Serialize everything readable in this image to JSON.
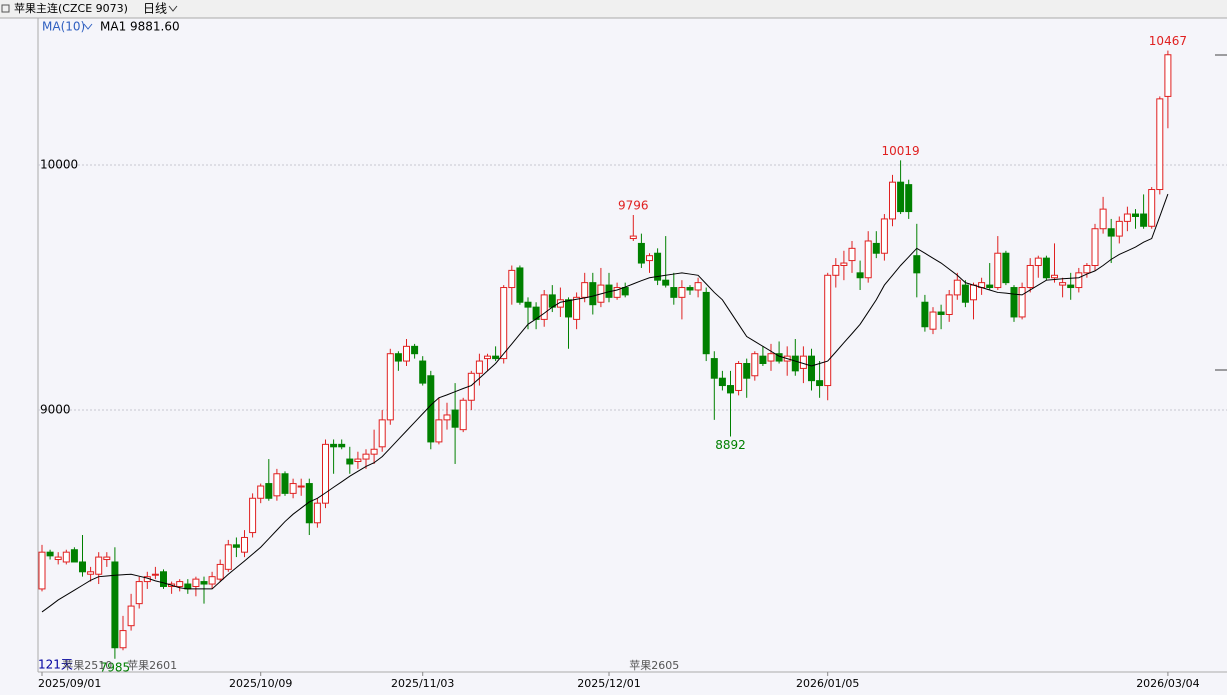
{
  "chart_data": {
    "type": "candlestick",
    "title": "苹果主连(CZCE 9073)",
    "period": "日线",
    "indicator": "MA(10)",
    "ma_legend": "MA1 9881.60",
    "up_color": "#e02020",
    "down_color": "#008000",
    "ma_color": "#000000",
    "ylim": [
      7931,
      10600
    ],
    "yticks": [
      9000,
      10000
    ],
    "grid": true,
    "categories": [
      "2025/09/01",
      null,
      null,
      null,
      null,
      null,
      null,
      null,
      null,
      null,
      null,
      null,
      null,
      null,
      null,
      null,
      null,
      null,
      null,
      null,
      null,
      null,
      null,
      null,
      null,
      null,
      null,
      "2025/10/09",
      null,
      null,
      null,
      null,
      null,
      null,
      null,
      null,
      null,
      null,
      null,
      null,
      null,
      null,
      null,
      null,
      null,
      null,
      null,
      "2025/11/03",
      null,
      null,
      null,
      null,
      null,
      null,
      null,
      null,
      null,
      null,
      null,
      null,
      null,
      null,
      null,
      null,
      null,
      null,
      null,
      null,
      null,
      null,
      "2025/12/01",
      null,
      null,
      null,
      null,
      null,
      null,
      null,
      null,
      null,
      null,
      null,
      null,
      null,
      null,
      null,
      null,
      null,
      null,
      null,
      null,
      null,
      null,
      null,
      null,
      null,
      null,
      "2026/01/05",
      null,
      null,
      null,
      null,
      null,
      null,
      null,
      null,
      null,
      null,
      null,
      null,
      null,
      null,
      null,
      null,
      null,
      null,
      null,
      null,
      null,
      null,
      null,
      null,
      null,
      null,
      null,
      null,
      null,
      null,
      null,
      null,
      null,
      null,
      null,
      null,
      null,
      null,
      null,
      null,
      null,
      "2026/03/04"
    ],
    "candles": [
      [
        8270,
        8450,
        8260,
        8420
      ],
      [
        8420,
        8430,
        8390,
        8405
      ],
      [
        8390,
        8420,
        8370,
        8400
      ],
      [
        8380,
        8430,
        8370,
        8420
      ],
      [
        8430,
        8440,
        8380,
        8380
      ],
      [
        8380,
        8490,
        8320,
        8340
      ],
      [
        8330,
        8360,
        8300,
        8340
      ],
      [
        8330,
        8420,
        8290,
        8400
      ],
      [
        8390,
        8420,
        8360,
        8400
      ],
      [
        8380,
        8440,
        7985,
        8030
      ],
      [
        8030,
        8160,
        8020,
        8100
      ],
      [
        8120,
        8250,
        8100,
        8200
      ],
      [
        8210,
        8320,
        8190,
        8300
      ],
      [
        8300,
        8340,
        8270,
        8320
      ],
      [
        8330,
        8360,
        8310,
        8330
      ],
      [
        8340,
        8350,
        8270,
        8280
      ],
      [
        8280,
        8300,
        8250,
        8290
      ],
      [
        8280,
        8310,
        8260,
        8300
      ],
      [
        8290,
        8310,
        8250,
        8270
      ],
      [
        8280,
        8320,
        8240,
        8310
      ],
      [
        8300,
        8320,
        8210,
        8290
      ],
      [
        8290,
        8340,
        8270,
        8320
      ],
      [
        8310,
        8390,
        8300,
        8370
      ],
      [
        8350,
        8470,
        8340,
        8450
      ],
      [
        8450,
        8480,
        8400,
        8440
      ],
      [
        8420,
        8510,
        8400,
        8480
      ],
      [
        8500,
        8660,
        8480,
        8640
      ],
      [
        8640,
        8700,
        8620,
        8690
      ],
      [
        8700,
        8800,
        8630,
        8640
      ],
      [
        8650,
        8760,
        8630,
        8740
      ],
      [
        8740,
        8750,
        8650,
        8660
      ],
      [
        8660,
        8720,
        8640,
        8700
      ],
      [
        8690,
        8720,
        8650,
        8690
      ],
      [
        8700,
        8720,
        8490,
        8540
      ],
      [
        8540,
        8640,
        8520,
        8620
      ],
      [
        8620,
        8880,
        8600,
        8860
      ],
      [
        8860,
        8880,
        8740,
        8850
      ],
      [
        8860,
        8880,
        8840,
        8850
      ],
      [
        8800,
        8850,
        8740,
        8780
      ],
      [
        8790,
        8830,
        8760,
        8800
      ],
      [
        8800,
        8840,
        8760,
        8820
      ],
      [
        8820,
        8920,
        8780,
        8840
      ],
      [
        8850,
        9000,
        8830,
        8960
      ],
      [
        8960,
        9250,
        8940,
        9230
      ],
      [
        9230,
        9240,
        9160,
        9200
      ],
      [
        9200,
        9290,
        9180,
        9260
      ],
      [
        9260,
        9270,
        9210,
        9230
      ],
      [
        9200,
        9220,
        9100,
        9110
      ],
      [
        9140,
        9160,
        8840,
        8870
      ],
      [
        8870,
        9050,
        8860,
        8960
      ],
      [
        8960,
        9030,
        8920,
        8980
      ],
      [
        9000,
        9110,
        8780,
        8930
      ],
      [
        8920,
        9050,
        8910,
        9040
      ],
      [
        9040,
        9160,
        9000,
        9150
      ],
      [
        9150,
        9230,
        9100,
        9200
      ],
      [
        9210,
        9230,
        9160,
        9220
      ],
      [
        9220,
        9260,
        9200,
        9210
      ],
      [
        9210,
        9510,
        9190,
        9500
      ],
      [
        9500,
        9590,
        9430,
        9570
      ],
      [
        9580,
        9590,
        9430,
        9440
      ],
      [
        9440,
        9460,
        9330,
        9420
      ],
      [
        9420,
        9440,
        9330,
        9370
      ],
      [
        9370,
        9490,
        9340,
        9470
      ],
      [
        9470,
        9510,
        9400,
        9420
      ],
      [
        9420,
        9500,
        9380,
        9450
      ],
      [
        9450,
        9460,
        9250,
        9380
      ],
      [
        9370,
        9480,
        9330,
        9460
      ],
      [
        9460,
        9560,
        9440,
        9520
      ],
      [
        9520,
        9560,
        9390,
        9430
      ],
      [
        9440,
        9580,
        9420,
        9510
      ],
      [
        9510,
        9560,
        9440,
        9460
      ],
      [
        9460,
        9520,
        9450,
        9500
      ],
      [
        9500,
        9520,
        9460,
        9470
      ],
      [
        9700,
        9796,
        9690,
        9710
      ],
      [
        9680,
        9720,
        9580,
        9600
      ],
      [
        9610,
        9640,
        9560,
        9630
      ],
      [
        9640,
        9660,
        9510,
        9530
      ],
      [
        9530,
        9710,
        9500,
        9510
      ],
      [
        9500,
        9560,
        9430,
        9460
      ],
      [
        9460,
        9530,
        9370,
        9500
      ],
      [
        9500,
        9510,
        9470,
        9490
      ],
      [
        9490,
        9540,
        9460,
        9520
      ],
      [
        9480,
        9500,
        9200,
        9230
      ],
      [
        9210,
        9240,
        8960,
        9130
      ],
      [
        9130,
        9160,
        9080,
        9100
      ],
      [
        9100,
        9160,
        8892,
        9070
      ],
      [
        9080,
        9200,
        9060,
        9190
      ],
      [
        9190,
        9210,
        9050,
        9130
      ],
      [
        9140,
        9240,
        9120,
        9230
      ],
      [
        9220,
        9260,
        9180,
        9190
      ],
      [
        9200,
        9270,
        9160,
        9230
      ],
      [
        9230,
        9280,
        9190,
        9200
      ],
      [
        9200,
        9260,
        9140,
        9220
      ],
      [
        9220,
        9290,
        9140,
        9160
      ],
      [
        9170,
        9260,
        9110,
        9220
      ],
      [
        9220,
        9250,
        9080,
        9120
      ],
      [
        9120,
        9200,
        9050,
        9100
      ],
      [
        9100,
        9560,
        9040,
        9550
      ],
      [
        9550,
        9620,
        9500,
        9590
      ],
      [
        9590,
        9650,
        9530,
        9600
      ],
      [
        9610,
        9690,
        9560,
        9660
      ],
      [
        9560,
        9610,
        9490,
        9540
      ],
      [
        9540,
        9730,
        9520,
        9690
      ],
      [
        9680,
        9730,
        9620,
        9640
      ],
      [
        9640,
        9800,
        9610,
        9780
      ],
      [
        9780,
        9960,
        9750,
        9930
      ],
      [
        9930,
        10019,
        9800,
        9810
      ],
      [
        9920,
        9940,
        9780,
        9810
      ],
      [
        9630,
        9760,
        9460,
        9560
      ],
      [
        9440,
        9470,
        9320,
        9340
      ],
      [
        9330,
        9420,
        9310,
        9400
      ],
      [
        9400,
        9430,
        9330,
        9390
      ],
      [
        9390,
        9490,
        9360,
        9470
      ],
      [
        9470,
        9560,
        9450,
        9530
      ],
      [
        9510,
        9530,
        9420,
        9440
      ],
      [
        9450,
        9520,
        9370,
        9510
      ],
      [
        9500,
        9540,
        9470,
        9520
      ],
      [
        9510,
        9600,
        9490,
        9500
      ],
      [
        9500,
        9710,
        9490,
        9640
      ],
      [
        9640,
        9650,
        9510,
        9520
      ],
      [
        9500,
        9510,
        9360,
        9380
      ],
      [
        9380,
        9520,
        9370,
        9500
      ],
      [
        9500,
        9620,
        9480,
        9590
      ],
      [
        9590,
        9630,
        9540,
        9620
      ],
      [
        9620,
        9630,
        9530,
        9540
      ],
      [
        9540,
        9680,
        9520,
        9550
      ],
      [
        9510,
        9540,
        9460,
        9520
      ],
      [
        9510,
        9560,
        9450,
        9500
      ],
      [
        9500,
        9580,
        9480,
        9560
      ],
      [
        9560,
        9600,
        9540,
        9590
      ],
      [
        9590,
        9760,
        9570,
        9740
      ],
      [
        9740,
        9870,
        9720,
        9820
      ],
      [
        9740,
        9780,
        9600,
        9710
      ],
      [
        9710,
        9790,
        9680,
        9770
      ],
      [
        9770,
        9830,
        9730,
        9800
      ],
      [
        9800,
        9820,
        9740,
        9790
      ],
      [
        9800,
        9880,
        9740,
        9750
      ],
      [
        9750,
        9910,
        9740,
        9900
      ],
      [
        9900,
        10280,
        9880,
        10270
      ],
      [
        10280,
        10467,
        10150,
        10450
      ]
    ],
    "ma": [
      8176,
      8200,
      8225,
      8245,
      8265,
      8285,
      8305,
      8320,
      8323,
      8326,
      8328,
      8330,
      8322,
      8314,
      8303,
      8295,
      8285,
      8275,
      8270,
      8270,
      8270,
      8270,
      8300,
      8330,
      8357,
      8384,
      8412,
      8440,
      8475,
      8510,
      8545,
      8575,
      8600,
      8625,
      8640,
      8662,
      8685,
      8707,
      8730,
      8750,
      8770,
      8785,
      8810,
      8845,
      8880,
      8915,
      8950,
      8985,
      9020,
      9050,
      9062,
      9075,
      9088,
      9100,
      9130,
      9160,
      9190,
      9230,
      9270,
      9310,
      9350,
      9372,
      9395,
      9420,
      9440,
      9446,
      9452,
      9458,
      9465,
      9474,
      9483,
      9490,
      9502,
      9515,
      9528,
      9540,
      9545,
      9550,
      9555,
      9560,
      9555,
      9550,
      9515,
      9480,
      9450,
      9400,
      9350,
      9300,
      9280,
      9260,
      9240,
      9220,
      9210,
      9200,
      9190,
      9180,
      9190,
      9200,
      9237,
      9275,
      9312,
      9350,
      9400,
      9450,
      9510,
      9550,
      9590,
      9625,
      9660,
      9640,
      9620,
      9600,
      9575,
      9550,
      9520,
      9510,
      9500,
      9490,
      9480,
      9477,
      9473,
      9470,
      9490,
      9510,
      9530,
      9533,
      9536,
      9538,
      9540,
      9555,
      9568,
      9590,
      9615,
      9635,
      9650,
      9665,
      9685,
      9700,
      9790,
      9881.6
    ],
    "annotations": [
      {
        "text": "10467",
        "at": 139,
        "side": "high"
      },
      {
        "text": "10019",
        "at": 106,
        "side": "high"
      },
      {
        "text": "9796",
        "at": 73,
        "side": "high"
      },
      {
        "text": "8892",
        "at": 85,
        "side": "low"
      },
      {
        "text": "7985",
        "at": 9,
        "side": "low"
      }
    ],
    "contracts": [
      {
        "text": "苹果2510",
        "at": 3
      },
      {
        "text": "苹果2601",
        "at": 11
      },
      {
        "text": "苹果2605",
        "at": 73
      }
    ],
    "days": "121天"
  }
}
